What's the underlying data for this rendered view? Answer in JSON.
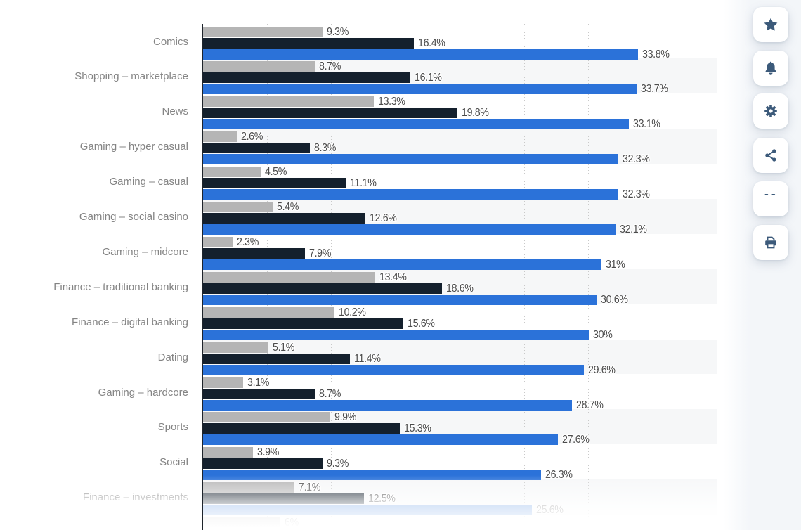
{
  "chart_data": {
    "type": "bar",
    "orientation": "horizontal",
    "title": "",
    "xlim": [
      0,
      40
    ],
    "gridline_interval_percent": 5,
    "grid": "dotted-vertical-lines",
    "legend_position": "not-visible-in-crop",
    "row_striping": "alternate rows shaded",
    "bottom_edge": "chart cropped with white fade; next row partially visible",
    "categories": [
      "Comics",
      "Shopping – marketplace",
      "News",
      "Gaming – hyper casual",
      "Gaming – casual",
      "Gaming – social casino",
      "Gaming – midcore",
      "Finance – traditional banking",
      "Finance – digital banking",
      "Dating",
      "Gaming – hardcore",
      "Sports",
      "Social",
      "Finance – investments"
    ],
    "series": [
      {
        "name": "series-gray",
        "color": "#b5b5b5",
        "values": [
          9.3,
          8.7,
          13.3,
          2.6,
          4.5,
          5.4,
          2.3,
          13.4,
          10.2,
          5.1,
          3.1,
          9.9,
          3.9,
          7.1
        ],
        "labels": [
          "9.3%",
          "8.7%",
          "13.3%",
          "2.6%",
          "4.5%",
          "5.4%",
          "2.3%",
          "13.4%",
          "10.2%",
          "5.1%",
          "3.1%",
          "9.9%",
          "3.9%",
          "7.1%"
        ]
      },
      {
        "name": "series-dark-navy",
        "color": "#14202d",
        "values": [
          16.4,
          16.1,
          19.8,
          8.3,
          11.1,
          12.6,
          7.9,
          18.6,
          15.6,
          11.4,
          8.7,
          15.3,
          9.3,
          12.5
        ],
        "labels": [
          "16.4%",
          "16.1%",
          "19.8%",
          "8.3%",
          "11.1%",
          "12.6%",
          "7.9%",
          "18.6%",
          "15.6%",
          "11.4%",
          "8.7%",
          "15.3%",
          "9.3%",
          "12.5%"
        ]
      },
      {
        "name": "series-blue",
        "color": "#2b72d9",
        "values": [
          33.8,
          33.7,
          33.1,
          32.3,
          32.3,
          32.1,
          31,
          30.6,
          30,
          29.6,
          28.7,
          27.6,
          26.3,
          25.6
        ],
        "labels": [
          "33.8%",
          "33.7%",
          "33.1%",
          "32.3%",
          "32.3%",
          "32.1%",
          "31%",
          "30.6%",
          "30%",
          "29.6%",
          "28.7%",
          "27.6%",
          "26.3%",
          "25.6%"
        ]
      }
    ],
    "partial_next_row": {
      "series": "series-gray",
      "value": 6,
      "label": "6%"
    }
  },
  "colors": {
    "axis": "#1e242b",
    "gridline": "#c9c9c9",
    "stripe": "#f6f7f8",
    "category_label": "#848484",
    "value_label": "#4b4b4b",
    "toolbar_icon": "#3c5a7a",
    "toolbar_button_bg": "#ffffff"
  },
  "toolbar": {
    "buttons": [
      {
        "id": "favorite",
        "icon": "star-icon"
      },
      {
        "id": "alerts",
        "icon": "bell-icon"
      },
      {
        "id": "settings",
        "icon": "gear-icon"
      },
      {
        "id": "share",
        "icon": "share-icon"
      },
      {
        "id": "cite",
        "icon": "quote-icon"
      },
      {
        "id": "print",
        "icon": "printer-icon"
      }
    ],
    "quote_glyph": "”"
  }
}
